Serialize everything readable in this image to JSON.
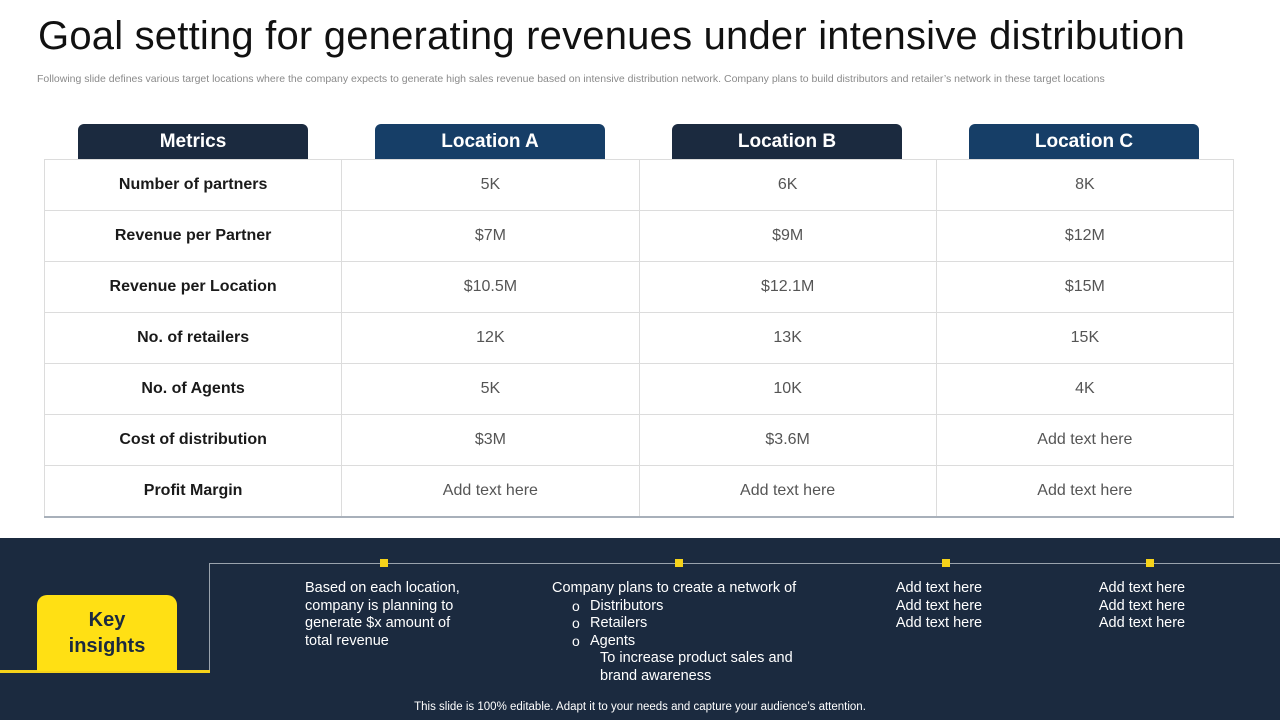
{
  "title": "Goal setting for generating revenues under intensive distribution",
  "subtitle": "Following slide defines various target locations where the company expects to  generate high sales revenue based on intensive distribution network. Company plans to build distributors and retailer’s network in these target locations",
  "columns": [
    "Metrics",
    "Location A",
    "Location B",
    "Location C"
  ],
  "rows": [
    {
      "metric": "Number of partners",
      "a": "5K",
      "b": "6K",
      "c": "8K"
    },
    {
      "metric": "Revenue per Partner",
      "a": "$7M",
      "b": "$9M",
      "c": "$12M"
    },
    {
      "metric": "Revenue per Location",
      "a": "$10.5M",
      "b": "$12.1M",
      "c": "$15M"
    },
    {
      "metric": "No. of retailers",
      "a": "12K",
      "b": "13K",
      "c": "15K"
    },
    {
      "metric": "No. of Agents",
      "a": "5K",
      "b": "10K",
      "c": "4K"
    },
    {
      "metric": "Cost of distribution",
      "a": "$3M",
      "b": "$3.6M",
      "c": "Add text here"
    },
    {
      "metric": "Profit Margin",
      "a": "Add text here",
      "b": "Add text here",
      "c": "Add text here"
    }
  ],
  "key_insights": {
    "label_line1": "Key",
    "label_line2": "insights",
    "insight1": [
      "Based on each location,",
      "company is planning to",
      "generate $x amount of",
      "total revenue"
    ],
    "insight2": {
      "intro": "Company plans to create a network of",
      "bullets": [
        "Distributors",
        "Retailers",
        "Agents"
      ],
      "follow": [
        "To increase product sales and",
        "brand awareness"
      ]
    },
    "insight3": [
      "Add text here",
      "Add text here",
      "Add text here"
    ],
    "insight4": [
      "Add text here",
      "Add text here",
      "Add text here"
    ]
  },
  "footer": "This slide is 100% editable. Adapt it to your needs and capture your audience’s attention.",
  "colors": {
    "navy": "#1b2a3f",
    "blue": "#163e67",
    "accent_yellow": "#ffe014"
  }
}
